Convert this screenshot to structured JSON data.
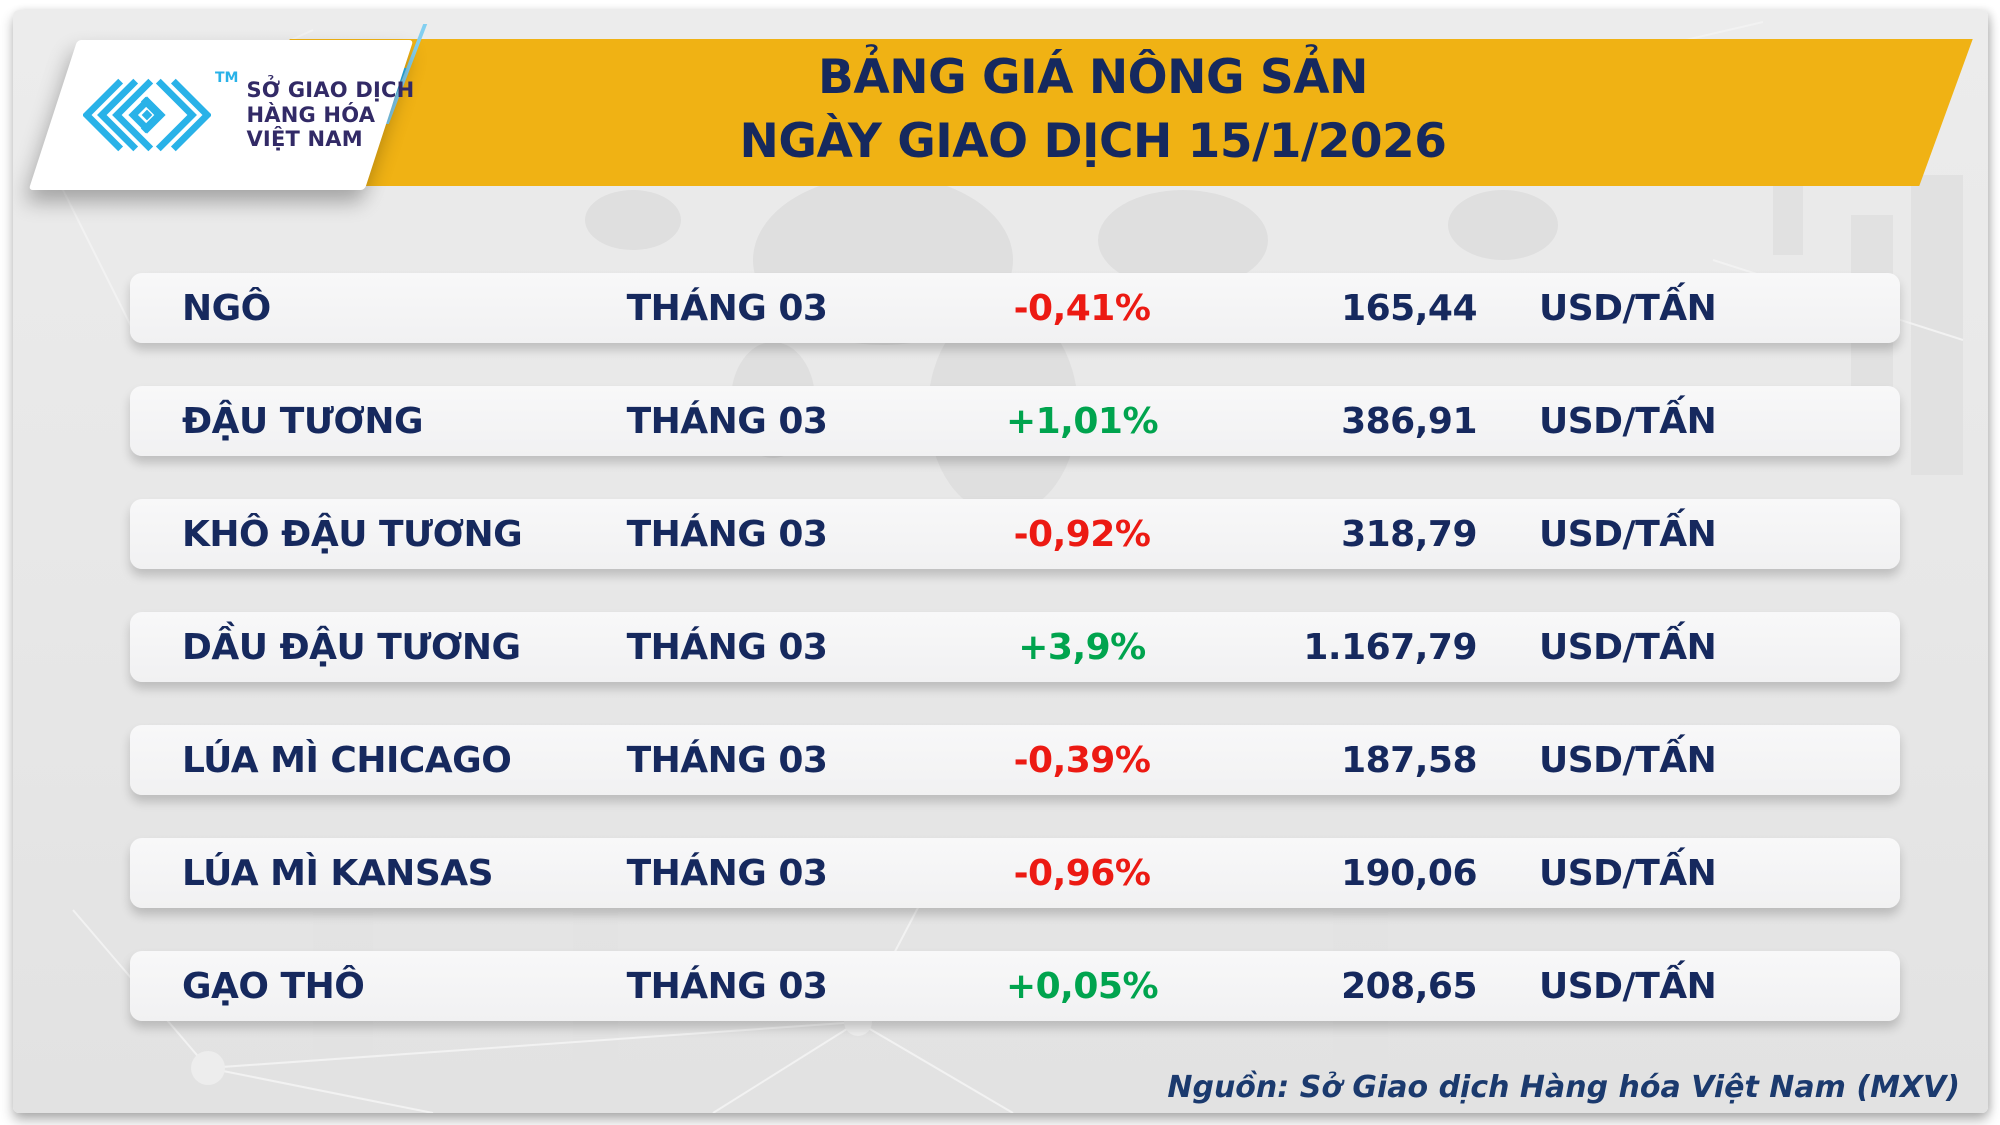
{
  "colors": {
    "banner_yellow": "#F0B214",
    "navy_text": "#16295E",
    "negative_red": "#EC1A13",
    "positive_green": "#00A44E",
    "logo_cyan": "#29B2E8",
    "logo_ink": "#322A66",
    "footer_navy": "#1B3A6E"
  },
  "logo": {
    "tm": "TM",
    "org_lines": [
      "SỞ GIAO DỊCH",
      "HÀNG HÓA",
      "VIỆT NAM"
    ]
  },
  "banner": {
    "title_line1": "BẢNG GIÁ NÔNG SẢN",
    "title_line2": "NGÀY GIAO DỊCH 15/1/2026"
  },
  "chart_data": {
    "type": "table",
    "title": "BẢNG GIÁ NÔNG SẢN",
    "subtitle": "NGÀY GIAO DỊCH 15/1/2026",
    "rows": [
      {
        "name": "NGÔ",
        "month": "THÁNG 03",
        "change": "-0,41%",
        "direction": "down",
        "price": "165,44",
        "unit": "USD/TẤN"
      },
      {
        "name": "ĐẬU TƯƠNG",
        "month": "THÁNG 03",
        "change": "+1,01%",
        "direction": "up",
        "price": "386,91",
        "unit": "USD/TẤN"
      },
      {
        "name": "KHÔ ĐẬU TƯƠNG",
        "month": "THÁNG 03",
        "change": "-0,92%",
        "direction": "down",
        "price": "318,79",
        "unit": "USD/TẤN"
      },
      {
        "name": "DẦU ĐẬU TƯƠNG",
        "month": "THÁNG 03",
        "change": "+3,9%",
        "direction": "up",
        "price": "1.167,79",
        "unit": "USD/TẤN"
      },
      {
        "name": "LÚA MÌ CHICAGO",
        "month": "THÁNG 03",
        "change": "-0,39%",
        "direction": "down",
        "price": "187,58",
        "unit": "USD/TẤN"
      },
      {
        "name": "LÚA MÌ KANSAS",
        "month": "THÁNG 03",
        "change": "-0,96%",
        "direction": "down",
        "price": "190,06",
        "unit": "USD/TẤN"
      },
      {
        "name": "GẠO THÔ",
        "month": "THÁNG 03",
        "change": "+0,05%",
        "direction": "up",
        "price": "208,65",
        "unit": "USD/TẤN"
      }
    ]
  },
  "footer": {
    "source": "Nguồn: Sở Giao dịch Hàng hóa Việt Nam (MXV)"
  }
}
